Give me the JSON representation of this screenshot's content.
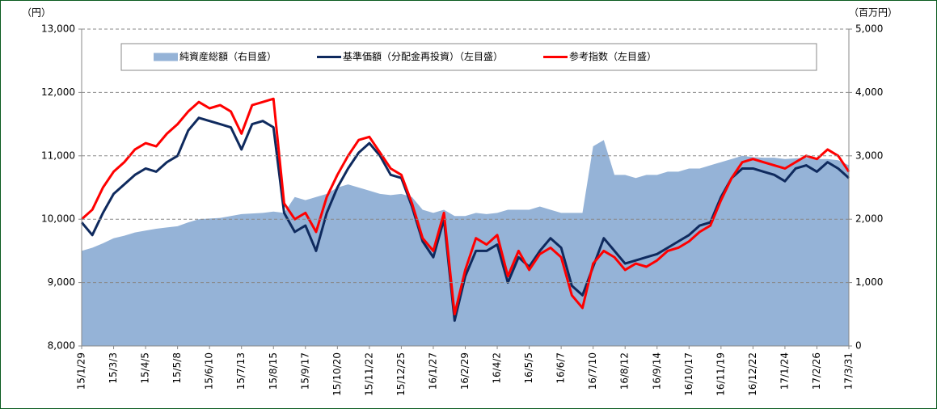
{
  "chart_data": {
    "type": "line",
    "left_unit": "（円）",
    "right_unit": "（百万円）",
    "categories": [
      "15/1/29",
      null,
      null,
      "15/3/3",
      null,
      null,
      "15/4/5",
      null,
      null,
      "15/5/8",
      null,
      null,
      "15/6/10",
      null,
      null,
      "15/7/13",
      null,
      null,
      "15/8/15",
      null,
      null,
      "15/9/17",
      null,
      null,
      "15/10/20",
      null,
      null,
      "15/11/22",
      null,
      null,
      "15/12/25",
      null,
      null,
      "16/1/27",
      null,
      null,
      "16/2/29",
      null,
      null,
      "16/4/2",
      null,
      null,
      "16/5/5",
      null,
      null,
      "16/6/7",
      null,
      null,
      "16/7/10",
      null,
      null,
      "16/8/12",
      null,
      null,
      "16/9/14",
      null,
      null,
      "16/10/17",
      null,
      null,
      "16/11/19",
      null,
      null,
      "16/12/22",
      null,
      null,
      "17/1/24",
      null,
      null,
      "17/2/26",
      null,
      null,
      "17/3/31"
    ],
    "series": [
      {
        "name": "純資産総額（右目盛）",
        "color": "#95b3d7",
        "axis": "y2",
        "kind": "area",
        "values": [
          1500,
          1550,
          1620,
          1700,
          1740,
          1790,
          1820,
          1850,
          1870,
          1890,
          1950,
          2000,
          2010,
          2020,
          2050,
          2080,
          2090,
          2100,
          2120,
          2100,
          2350,
          2300,
          2350,
          2400,
          2500,
          2550,
          2500,
          2450,
          2400,
          2380,
          2400,
          2350,
          2150,
          2100,
          2150,
          2050,
          2050,
          2100,
          2080,
          2100,
          2150,
          2150,
          2150,
          2200,
          2150,
          2100,
          2100,
          2100,
          3150,
          3250,
          2700,
          2700,
          2650,
          2700,
          2700,
          2750,
          2750,
          2800,
          2800,
          2850,
          2900,
          2950,
          3000,
          2980,
          2970,
          2970,
          2950,
          2960,
          2970,
          2950,
          2950,
          2930,
          2850
        ]
      },
      {
        "name": "基準価額（分配金再投資）（左目盛）",
        "color": "#0f2a5e",
        "kind": "line",
        "values": [
          9950,
          9750,
          10100,
          10400,
          10550,
          10700,
          10800,
          10750,
          10900,
          11000,
          11400,
          11600,
          11550,
          11500,
          11450,
          11100,
          11500,
          11550,
          11450,
          10100,
          9800,
          9900,
          9500,
          10100,
          10500,
          10800,
          11050,
          11200,
          11000,
          10700,
          10650,
          10200,
          9650,
          9400,
          10000,
          8400,
          9100,
          9500,
          9500,
          9600,
          9000,
          9400,
          9250,
          9500,
          9700,
          9550,
          8950,
          8800,
          9250,
          9700,
          9500,
          9300,
          9350,
          9400,
          9450,
          9550,
          9650,
          9750,
          9900,
          9950,
          10350,
          10650,
          10800,
          10800,
          10750,
          10700,
          10600,
          10800,
          10850,
          10750,
          10900,
          10800,
          10650
        ]
      },
      {
        "name": "参考指数（左目盛）",
        "color": "#ff0000",
        "kind": "line",
        "values": [
          10000,
          10150,
          10500,
          10750,
          10900,
          11100,
          11200,
          11150,
          11350,
          11500,
          11700,
          11850,
          11750,
          11800,
          11700,
          11350,
          11800,
          11850,
          11900,
          10250,
          10000,
          10100,
          9800,
          10350,
          10700,
          11000,
          11250,
          11300,
          11050,
          10800,
          10700,
          10250,
          9700,
          9500,
          10100,
          8500,
          9200,
          9700,
          9600,
          9750,
          9100,
          9500,
          9200,
          9450,
          9550,
          9400,
          8800,
          8600,
          9300,
          9500,
          9400,
          9200,
          9300,
          9250,
          9350,
          9500,
          9550,
          9650,
          9800,
          9900,
          10300,
          10650,
          10900,
          10950,
          10900,
          10850,
          10800,
          10900,
          11000,
          10950,
          11100,
          11000,
          10750
        ]
      }
    ],
    "ylim": [
      8000,
      13000
    ],
    "yticks": [
      {
        "value": 8000,
        "label": "8,000"
      },
      {
        "value": 9000,
        "label": "9,000"
      },
      {
        "value": 10000,
        "label": "10,000"
      },
      {
        "value": 11000,
        "label": "11,000"
      },
      {
        "value": 12000,
        "label": "12,000"
      },
      {
        "value": 13000,
        "label": "13,000"
      }
    ],
    "y2lim": [
      0,
      5000
    ],
    "y2ticks": [
      0,
      {
        "value": 1000,
        "label": "1,000"
      },
      {
        "value": 2000,
        "label": "2,000"
      },
      {
        "value": 3000,
        "label": "3,000"
      },
      {
        "value": 4000,
        "label": "4,000"
      },
      {
        "value": 5000,
        "label": "5,000"
      }
    ],
    "grid": true
  }
}
